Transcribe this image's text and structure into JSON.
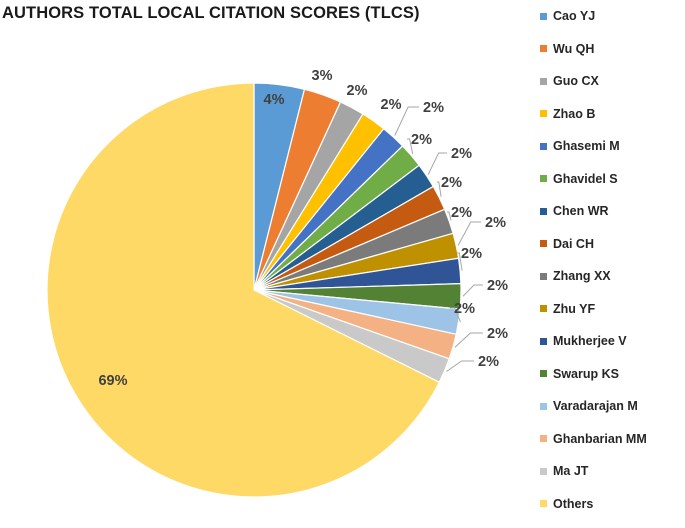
{
  "chart_data": {
    "type": "pie",
    "title": "AUTHORS TOTAL LOCAL CITATION SCORES (TLCS)",
    "legend_position": "right",
    "slices": [
      {
        "name": "Cao YJ",
        "label": "4%",
        "value": 4,
        "color": "#5b9bd5"
      },
      {
        "name": "Wu QH",
        "label": "3%",
        "value": 3,
        "color": "#ed7d31"
      },
      {
        "name": "Guo CX",
        "label": "2%",
        "value": 2,
        "color": "#a5a5a5"
      },
      {
        "name": "Zhao B",
        "label": "2%",
        "value": 2,
        "color": "#ffc000"
      },
      {
        "name": "Ghasemi M",
        "label": "2%",
        "value": 2,
        "color": "#4472c4"
      },
      {
        "name": "Ghavidel S",
        "label": "2%",
        "value": 2,
        "color": "#70ad47"
      },
      {
        "name": "Chen WR",
        "label": "2%",
        "value": 2,
        "color": "#255e91"
      },
      {
        "name": "Dai CH",
        "label": "2%",
        "value": 2,
        "color": "#c55a11"
      },
      {
        "name": "Zhang XX",
        "label": "2%",
        "value": 2,
        "color": "#7b7b7b"
      },
      {
        "name": "Zhu YF",
        "label": "2%",
        "value": 2,
        "color": "#bf9000"
      },
      {
        "name": "Mukherjee V",
        "label": "2%",
        "value": 2,
        "color": "#2f5597"
      },
      {
        "name": "Swarup KS",
        "label": "2%",
        "value": 2,
        "color": "#548235"
      },
      {
        "name": "Varadarajan M",
        "label": "2%",
        "value": 2,
        "color": "#9dc3e6"
      },
      {
        "name": "Ghanbarian MM",
        "label": "2%",
        "value": 2,
        "color": "#f4b183"
      },
      {
        "name": "Ma JT",
        "label": "2%",
        "value": 2,
        "color": "#c9c9c9"
      },
      {
        "name": "Others",
        "label": "69%",
        "value": 69,
        "color": "#ffd966"
      }
    ]
  }
}
